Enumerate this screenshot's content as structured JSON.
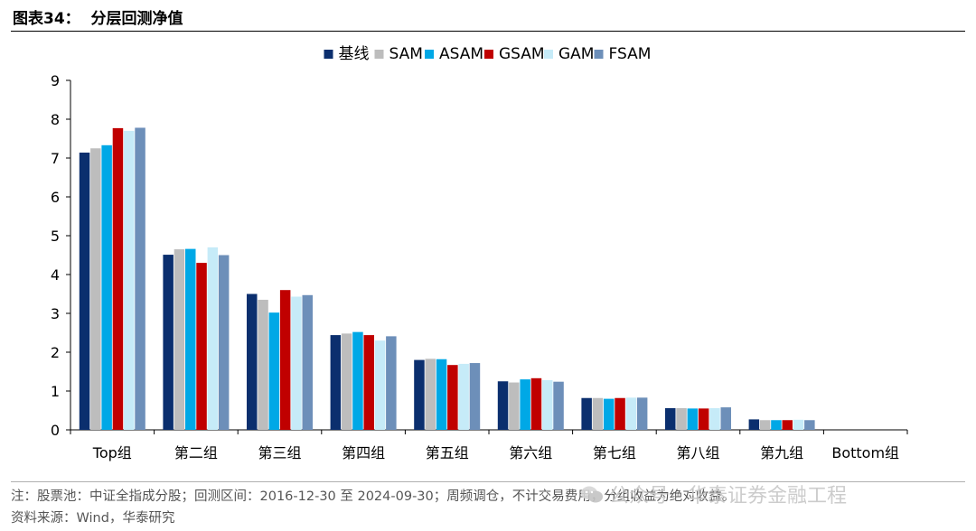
{
  "figure_title": "图表34：  分层回测净值",
  "note": "注：股票池：中证全指成分股；回测区间：2016-12-30 至 2024-09-30；周频调仓，不计交易费用，分组收益为绝对收益。",
  "source": "资料来源：Wind，华泰研究",
  "watermark": "公众号 · 华泰证券金融工程",
  "colors": {
    "基线": "#0b2f6e",
    "SAM": "#bdbdbd",
    "ASAM": "#00a8e6",
    "GSAM": "#c00000",
    "GAM": "#c6ebf8",
    "FSAM": "#6d8fb9"
  },
  "chart_data": {
    "type": "bar",
    "categories": [
      "Top组",
      "第二组",
      "第三组",
      "第四组",
      "第五组",
      "第六组",
      "第七组",
      "第八组",
      "第九组",
      "Bottom组"
    ],
    "series": [
      {
        "name": "基线",
        "values": [
          7.14,
          4.51,
          3.5,
          2.44,
          1.8,
          1.25,
          0.82,
          0.56,
          0.27,
          0
        ]
      },
      {
        "name": "SAM",
        "values": [
          7.25,
          4.65,
          3.35,
          2.48,
          1.83,
          1.22,
          0.82,
          0.56,
          0.25,
          0
        ]
      },
      {
        "name": "ASAM",
        "values": [
          7.33,
          4.66,
          3.02,
          2.52,
          1.82,
          1.3,
          0.8,
          0.55,
          0.25,
          0
        ]
      },
      {
        "name": "GSAM",
        "values": [
          7.77,
          4.3,
          3.6,
          2.44,
          1.67,
          1.33,
          0.82,
          0.55,
          0.25,
          0
        ]
      },
      {
        "name": "GAM",
        "values": [
          7.7,
          4.7,
          3.43,
          2.3,
          1.7,
          1.28,
          0.83,
          0.56,
          0.26,
          0
        ]
      },
      {
        "name": "FSAM",
        "values": [
          7.78,
          4.5,
          3.47,
          2.41,
          1.72,
          1.24,
          0.83,
          0.58,
          0.25,
          0
        ]
      }
    ],
    "ylim": [
      0,
      9
    ],
    "yticks": [
      "0",
      "1",
      "2",
      "3",
      "4",
      "5",
      "6",
      "7",
      "8",
      "9"
    ],
    "title": "",
    "xlabel": "",
    "ylabel": "",
    "grid": false,
    "legend_position": "top-center"
  }
}
